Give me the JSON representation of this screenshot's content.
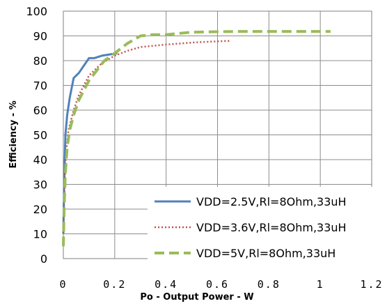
{
  "chart_data": {
    "type": "line",
    "title": "",
    "xlabel": "Po - Output Power - W",
    "ylabel": "Efficiency - %",
    "xlim": [
      0,
      1.2
    ],
    "ylim": [
      0,
      100
    ],
    "x_ticks": [
      "0",
      "0.2",
      "0.4",
      "0.6",
      "0.8",
      "1",
      "1.2"
    ],
    "y_ticks": [
      "0",
      "10",
      "20",
      "30",
      "40",
      "50",
      "60",
      "70",
      "80",
      "90",
      "100"
    ],
    "grid": true,
    "legend_position": "bottom-right",
    "series": [
      {
        "name": "VDD=2.5V,Rl=8Ohm,33uH",
        "color": "#4f81bd",
        "dash": "solid",
        "x": [
          0,
          0.003,
          0.008,
          0.015,
          0.025,
          0.04,
          0.06,
          0.08,
          0.1,
          0.12,
          0.15,
          0.18,
          0.21
        ],
        "y": [
          10,
          30,
          50,
          58,
          65,
          73,
          75,
          78,
          81,
          81,
          82,
          82.5,
          83
        ]
      },
      {
        "name": "VDD=3.6V,Rl=8Ohm,33uH",
        "color": "#c0504d",
        "dash": "dotted",
        "x": [
          0,
          0.005,
          0.01,
          0.02,
          0.04,
          0.06,
          0.08,
          0.1,
          0.12,
          0.15,
          0.2,
          0.25,
          0.3,
          0.4,
          0.5,
          0.6,
          0.65
        ],
        "y": [
          10,
          30,
          42,
          52,
          60,
          66,
          70,
          74,
          76,
          79,
          82,
          84,
          85.5,
          86.5,
          87.3,
          87.8,
          88
        ]
      },
      {
        "name": "VDD=5V,Rl=8Ohm,33uH",
        "color": "#9bbb59",
        "dash": "dashed",
        "x": [
          0,
          0.003,
          0.008,
          0.015,
          0.025,
          0.04,
          0.06,
          0.08,
          0.1,
          0.13,
          0.16,
          0.2,
          0.25,
          0.3,
          0.35,
          0.4,
          0.45,
          0.5,
          0.6,
          0.7,
          0.8,
          0.9,
          1.0,
          1.04
        ],
        "y": [
          5,
          20,
          35,
          45,
          52,
          58,
          64,
          68,
          72,
          76,
          80,
          83,
          87,
          90,
          90.5,
          90.5,
          91,
          91.5,
          91.7,
          91.8,
          91.8,
          91.8,
          91.8,
          91.8
        ]
      }
    ]
  }
}
